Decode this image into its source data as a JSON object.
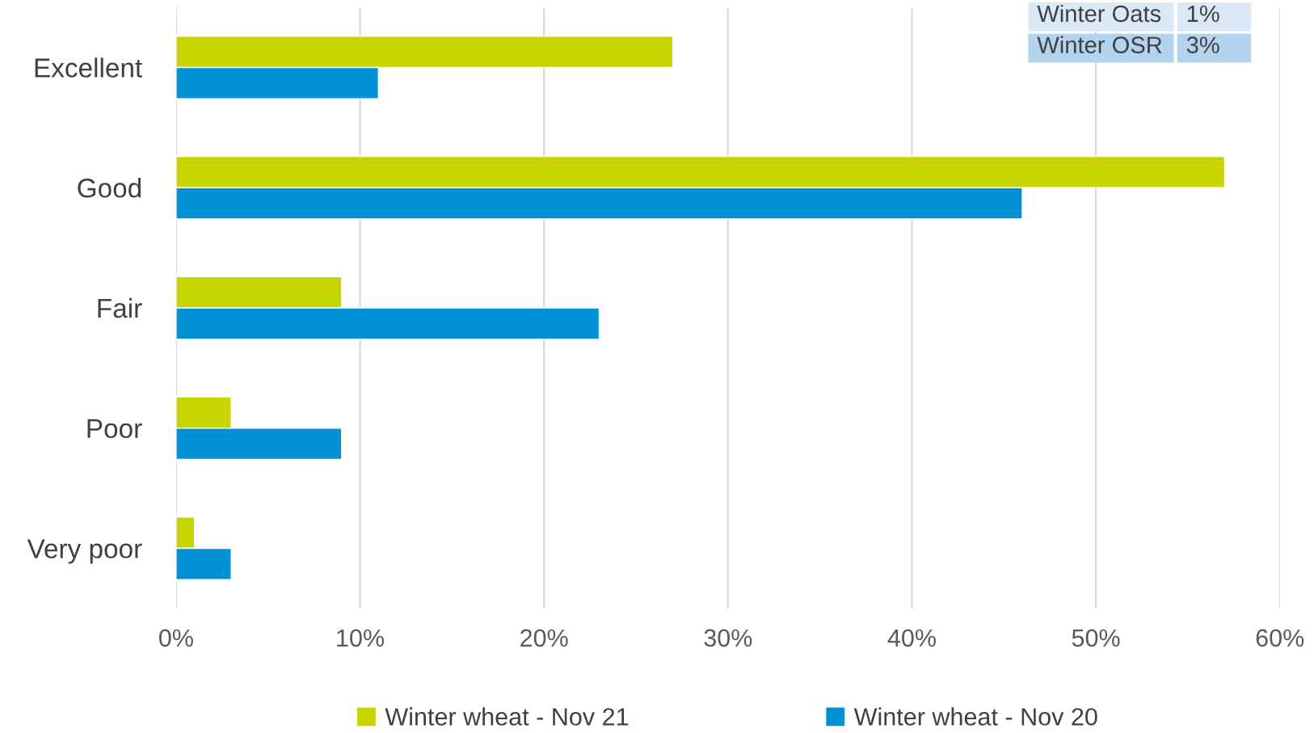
{
  "chart_data": {
    "type": "bar",
    "orientation": "horizontal",
    "categories": [
      "Excellent",
      "Good",
      "Fair",
      "Poor",
      "Very poor"
    ],
    "series": [
      {
        "name": "Winter wheat - Nov 21",
        "color": "#c8d400",
        "values": [
          27,
          57,
          9,
          3,
          1
        ]
      },
      {
        "name": "Winter wheat - Nov 20",
        "color": "#0091d5",
        "values": [
          11,
          46,
          23,
          9,
          3
        ]
      }
    ],
    "xlim": [
      0,
      60
    ],
    "xticks": [
      {
        "value": 0,
        "label": "0%"
      },
      {
        "value": 10,
        "label": "10%"
      },
      {
        "value": 20,
        "label": "20%"
      },
      {
        "value": 30,
        "label": "30%"
      },
      {
        "value": 40,
        "label": "40%"
      },
      {
        "value": 50,
        "label": "50%"
      },
      {
        "value": 60,
        "label": "60%"
      }
    ],
    "grid": "x",
    "legend": "bottom",
    "annotations": [
      "Winter Oats",
      "1%",
      "Winter OSR",
      "3%"
    ]
  }
}
